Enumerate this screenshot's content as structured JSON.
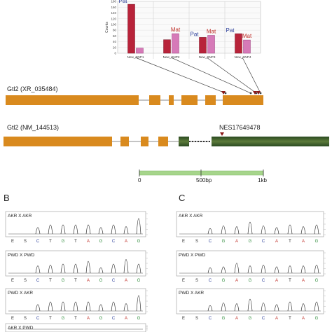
{
  "top_chart": {
    "ylabel": "Counts",
    "yticks": [
      "180",
      "160",
      "140",
      "120",
      "100",
      "80",
      "60",
      "40",
      "20",
      "0"
    ],
    "snps": [
      {
        "label": "New_SNP1",
        "pat_value": 170,
        "mat_value": 18,
        "pat_label": "Pat",
        "mat_label": ""
      },
      {
        "label": "New_SNP2",
        "pat_value": 47,
        "mat_value": 68,
        "pat_label": "",
        "mat_label": "Mat"
      },
      {
        "label": "New_SNP3",
        "pat_value": 55,
        "mat_value": 62,
        "pat_label": "Pat",
        "mat_label": "Mat"
      },
      {
        "label": "New_SNP4",
        "pat_value": 68,
        "mat_value": 46,
        "pat_label": "Pat",
        "mat_label": "Mat"
      }
    ],
    "pat_color": "#b8233a",
    "mat_color": "#d67ab8"
  },
  "genes": [
    {
      "label": "Gtl2 (XR_035484)"
    },
    {
      "label": "Gtl2 (NM_144513)",
      "marker": "NES17649478"
    }
  ],
  "scale_bar": {
    "ticks": [
      "0",
      "500bp",
      "1kb"
    ]
  },
  "panels": [
    {
      "letter": "B",
      "traces": [
        {
          "label": "AKR X AKR",
          "seq": [
            "E",
            "S",
            "C",
            "T",
            "G",
            "T",
            "A",
            "G",
            "C",
            "A",
            "G"
          ]
        },
        {
          "label": "PWD X PWD",
          "seq": [
            "E",
            "S",
            "C",
            "T",
            "G",
            "T",
            "A",
            "G",
            "C",
            "A",
            "G"
          ]
        },
        {
          "label": "PWD X AKR",
          "seq": [
            "E",
            "S",
            "C",
            "T",
            "G",
            "T",
            "A",
            "G",
            "C",
            "A",
            "G"
          ]
        },
        {
          "label": "AKR X PWD",
          "seq": []
        }
      ]
    },
    {
      "letter": "C",
      "traces": [
        {
          "label": "AKR X AKR",
          "seq": [
            "E",
            "S",
            "C",
            "G",
            "A",
            "G",
            "C",
            "A",
            "T",
            "A",
            "G"
          ]
        },
        {
          "label": "PWD X PWD",
          "seq": [
            "E",
            "S",
            "C",
            "G",
            "A",
            "G",
            "C",
            "A",
            "T",
            "A",
            "G"
          ]
        },
        {
          "label": "PWD X AKR",
          "seq": [
            "E",
            "S",
            "C",
            "G",
            "A",
            "G",
            "C",
            "A",
            "T",
            "A",
            "G"
          ]
        }
      ]
    }
  ],
  "colors": {
    "exon": "#d98a1e",
    "exon_dark": "#3d5a2a",
    "scale": "#a6d58b",
    "marker": "#8b1a1a"
  }
}
